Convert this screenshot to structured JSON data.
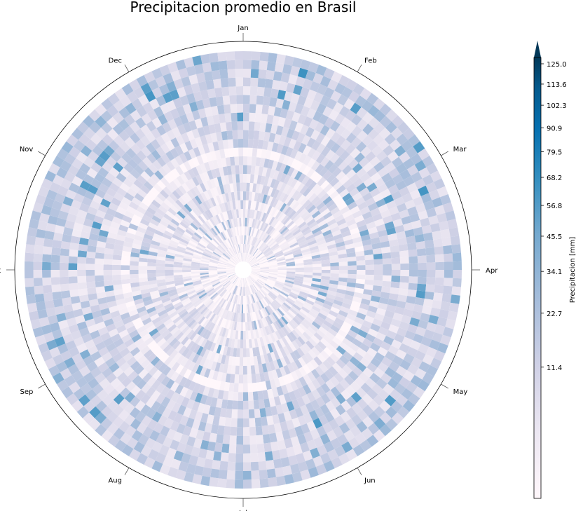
{
  "chart_data": {
    "type": "heatmap",
    "projection": "polar",
    "title": "Precipitacion promedio en Brasil",
    "angular_labels": [
      "Jan",
      "Feb",
      "Mar",
      "Apr",
      "May",
      "Jun",
      "Jul",
      "Aug",
      "Sep",
      "Oct",
      "Nov",
      "Dec"
    ],
    "angular_direction": "clockwise",
    "angular_zero": "top",
    "colormap": "PuBu",
    "colorbar": {
      "label": "Precipitacion [mm]",
      "scale": "sqrt",
      "range": [
        0,
        125.0
      ],
      "extend": "max",
      "ticks": [
        11.4,
        22.7,
        34.1,
        45.5,
        56.8,
        68.2,
        79.5,
        90.9,
        102.3,
        113.6,
        125.0
      ]
    },
    "radial_rings": 24,
    "angular_bins": 365,
    "ring_mean_intensity": [
      0.02,
      0.05,
      0.08,
      0.1,
      0.12,
      0.14,
      0.16,
      0.17,
      0.18,
      0.19,
      0.2,
      0.21,
      0.01,
      0.22,
      0.23,
      0.24,
      0.25,
      0.26,
      0.27,
      0.28,
      0.29,
      0.3,
      0.31,
      0.32
    ]
  }
}
